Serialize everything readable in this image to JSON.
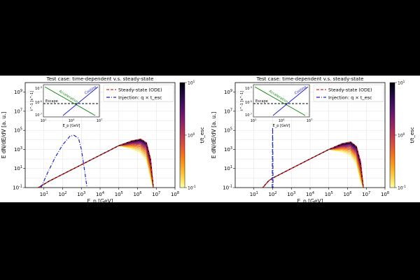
{
  "chart_data": [
    {
      "type": "line",
      "title": "Test case: time-dependent v.s. steady-state",
      "xlabel": "E_p [GeV]",
      "ylabel": "E dN/dE/dV [a. u.]",
      "xscale": "log",
      "yscale": "log",
      "xlim": [
        1,
        100000000
      ],
      "ylim": [
        0.1,
        10000000000
      ],
      "xticks": [
        "10^1",
        "10^2",
        "10^3",
        "10^4",
        "10^5",
        "10^6",
        "10^7",
        "10^8"
      ],
      "yticks": [
        "10^-1",
        "10^1",
        "10^3",
        "10^5",
        "10^7",
        "10^9"
      ],
      "grid": true,
      "legend_position": "top-right",
      "legend": [
        "Steady-state (ODE)",
        "Injection: q × t_esc"
      ],
      "colorbar": {
        "label": "t/t_esc",
        "ticks": [
          "10^1",
          "10^0",
          "10^-1"
        ],
        "cmap": "inferno_r"
      },
      "series": [
        {
          "name": "Steady-state (ODE)",
          "style": "dashed",
          "color": "#e8281d",
          "points": [
            [
              5,
              0.1
            ],
            [
              20,
              0.5
            ],
            [
              100,
              2.5
            ],
            [
              1000,
              25
            ],
            [
              10000,
              250
            ],
            [
              100000,
              2500
            ],
            [
              500000,
              8000
            ],
            [
              1500000,
              12000
            ],
            [
              3000000,
              5000
            ],
            [
              5000000,
              100
            ],
            [
              7000000,
              0.1
            ]
          ]
        },
        {
          "name": "Injection: q × t_esc",
          "style": "dashdot",
          "color": "#1f1fd6",
          "points": [
            [
              7,
              0.1
            ],
            [
              15,
              3
            ],
            [
              40,
              150
            ],
            [
              100,
              3000
            ],
            [
              250,
              25000
            ],
            [
              400,
              30000
            ],
            [
              700,
              15000
            ],
            [
              1000,
              1000
            ],
            [
              1500,
              5
            ],
            [
              2000,
              0.1
            ]
          ]
        }
      ],
      "inset": {
        "ylabel": "t^-1 [s^-1]",
        "xlabel": "E_p [GeV]",
        "xticks": [
          "10^1",
          "10^4",
          "10^7"
        ],
        "yticks": [
          "10^-3",
          "10^-5",
          "10^-7"
        ],
        "labels": [
          "Acceleration",
          "Cooling",
          "Escape"
        ]
      }
    },
    {
      "type": "line",
      "title": "Test case: time-dependent v.s. steady-state",
      "xlabel": "E_p [GeV]",
      "ylabel": "E dN/dE/dV [a. u.]",
      "xscale": "log",
      "yscale": "log",
      "xlim": [
        1,
        100000000
      ],
      "ylim": [
        0.1,
        10000000000
      ],
      "xticks": [
        "10^1",
        "10^2",
        "10^3",
        "10^4",
        "10^5",
        "10^6",
        "10^7",
        "10^8"
      ],
      "yticks": [
        "10^-1",
        "10^1",
        "10^3",
        "10^5",
        "10^7",
        "10^9"
      ],
      "grid": true,
      "legend_position": "top-right",
      "legend": [
        "Steady-state (ODE)",
        "Injection: q × t_esc"
      ],
      "colorbar": {
        "label": "t/t_esc",
        "ticks": [
          "10^1",
          "10^0",
          "10^-1"
        ],
        "cmap": "inferno_r"
      },
      "series": [
        {
          "name": "Steady-state (ODE)",
          "style": "dashed",
          "color": "#e8281d",
          "points": [
            [
              30,
              0.1
            ],
            [
              60,
              0.5
            ],
            [
              100,
              1
            ],
            [
              1000,
              10
            ],
            [
              10000,
              100
            ],
            [
              100000,
              1000
            ],
            [
              500000,
              4000
            ],
            [
              1500000,
              6000
            ],
            [
              3000000,
              2000
            ],
            [
              5000000,
              50
            ],
            [
              7000000,
              0.1
            ]
          ]
        },
        {
          "name": "Injection: q × t_esc",
          "style": "dashdot",
          "color": "#1f1fd6",
          "points": [
            [
              95,
              0.1
            ],
            [
              100,
              200000
            ],
            [
              105,
              0.1
            ]
          ]
        }
      ],
      "inset": {
        "ylabel": "t^-1 [s^-1]",
        "xlabel": "E_p [GeV]",
        "xticks": [
          "10^1",
          "10^4",
          "10^7"
        ],
        "yticks": [
          "10^-3",
          "10^-5",
          "10^-7"
        ],
        "labels": [
          "Acceleration",
          "Cooling",
          "Escape"
        ]
      }
    }
  ]
}
